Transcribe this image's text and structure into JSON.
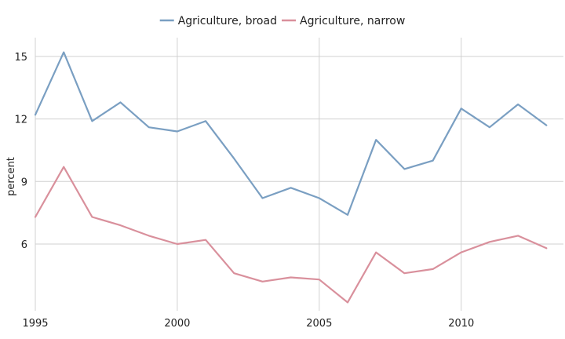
{
  "chart_data": {
    "type": "line",
    "title": "",
    "xlabel": "",
    "ylabel": "percent",
    "xlim": [
      1995,
      2013.6
    ],
    "ylim": [
      2.8,
      15.9
    ],
    "x_ticks": [
      1995,
      2000,
      2005,
      2010
    ],
    "y_ticks": [
      6,
      9,
      12,
      15
    ],
    "grid": true,
    "legend_position": "top-center",
    "x": [
      1995,
      1996,
      1997,
      1998,
      1999,
      2000,
      2001,
      2002,
      2003,
      2004,
      2005,
      2006,
      2007,
      2008,
      2009,
      2010,
      2011,
      2012,
      2013
    ],
    "series": [
      {
        "name": "Agriculture, broad",
        "color": "#7a9fc2",
        "values": [
          12.2,
          15.2,
          11.9,
          12.8,
          11.6,
          11.4,
          11.9,
          10.1,
          8.2,
          8.7,
          8.2,
          7.4,
          11.0,
          9.6,
          10.0,
          12.5,
          11.6,
          12.7,
          11.7
        ]
      },
      {
        "name": "Agriculture, narrow",
        "color": "#d9909c",
        "values": [
          7.3,
          9.7,
          7.3,
          6.9,
          6.4,
          6.0,
          6.2,
          4.6,
          4.2,
          4.4,
          4.3,
          3.2,
          5.6,
          4.6,
          4.8,
          5.6,
          6.1,
          6.4,
          5.8
        ]
      }
    ]
  }
}
